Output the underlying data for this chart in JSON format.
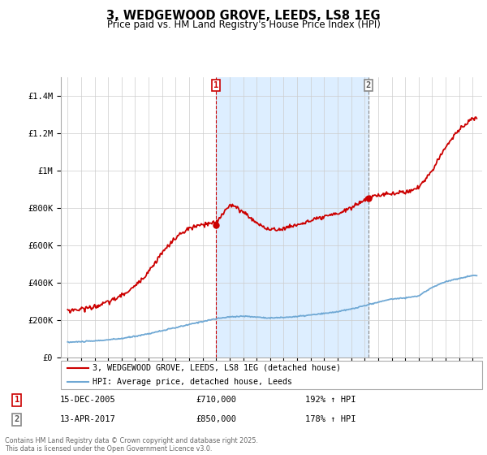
{
  "title": "3, WEDGEWOOD GROVE, LEEDS, LS8 1EG",
  "subtitle": "Price paid vs. HM Land Registry's House Price Index (HPI)",
  "legend_line1": "3, WEDGEWOOD GROVE, LEEDS, LS8 1EG (detached house)",
  "legend_line2": "HPI: Average price, detached house, Leeds",
  "annotation1_date": "15-DEC-2005",
  "annotation1_price": "£710,000",
  "annotation1_hpi": "192% ↑ HPI",
  "annotation2_date": "13-APR-2017",
  "annotation2_price": "£850,000",
  "annotation2_hpi": "178% ↑ HPI",
  "footer": "Contains HM Land Registry data © Crown copyright and database right 2025.\nThis data is licensed under the Open Government Licence v3.0.",
  "hpi_color": "#6fa8d4",
  "price_color": "#cc0000",
  "annotation_color": "#cc0000",
  "shade_color": "#ddeeff",
  "ylim": [
    0,
    1500000
  ],
  "yticks": [
    0,
    200000,
    400000,
    600000,
    800000,
    1000000,
    1200000,
    1400000
  ],
  "ytick_labels": [
    "£0",
    "£200K",
    "£400K",
    "£600K",
    "£800K",
    "£1M",
    "£1.2M",
    "£1.4M"
  ],
  "marker1_x": 2005.96,
  "marker1_y": 710000,
  "marker2_x": 2017.28,
  "marker2_y": 850000,
  "xlim_left": 1994.5,
  "xlim_right": 2025.7
}
